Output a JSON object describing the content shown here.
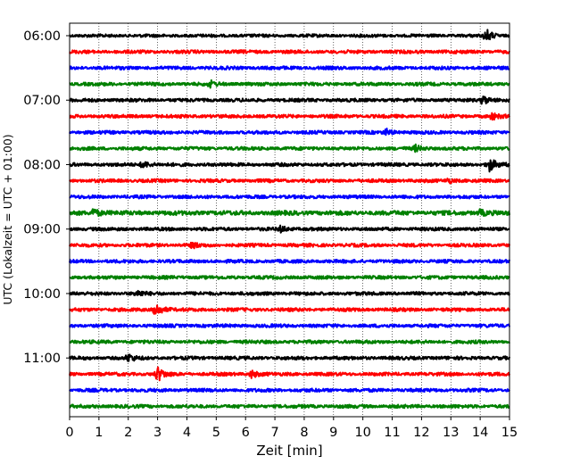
{
  "chart_data": {
    "type": "line",
    "subtype": "helicorder",
    "title": "",
    "xlabel": "Zeit  [min]",
    "ylabel": "UTC (Lokalzeit = UTC + 01:00)",
    "xlim": [
      0,
      15
    ],
    "x_ticks": [
      0,
      1,
      2,
      3,
      4,
      5,
      6,
      7,
      8,
      9,
      10,
      11,
      12,
      13,
      14,
      15
    ],
    "y_tick_labels": [
      "06:00",
      "07:00",
      "08:00",
      "09:00",
      "10:00",
      "11:00"
    ],
    "trace_minutes": 15,
    "grid_x": true,
    "grid_style": "dotted",
    "trace_colors": [
      "#000000",
      "#ff0000",
      "#0000ff",
      "#008000"
    ],
    "traces": [
      {
        "start": "06:00",
        "color": "#000000",
        "noise": 0.9,
        "events": [
          {
            "minute": 14.2,
            "amplitude": 7
          }
        ]
      },
      {
        "start": "06:15",
        "color": "#ff0000",
        "noise": 1.0,
        "events": []
      },
      {
        "start": "06:30",
        "color": "#0000ff",
        "noise": 1.0,
        "events": []
      },
      {
        "start": "06:45",
        "color": "#008000",
        "noise": 1.0,
        "events": [
          {
            "minute": 4.8,
            "amplitude": 3
          }
        ]
      },
      {
        "start": "07:00",
        "color": "#000000",
        "noise": 1.0,
        "events": [
          {
            "minute": 14.1,
            "amplitude": 5
          }
        ]
      },
      {
        "start": "07:15",
        "color": "#ff0000",
        "noise": 1.0,
        "events": [
          {
            "minute": 14.4,
            "amplitude": 3
          }
        ]
      },
      {
        "start": "07:30",
        "color": "#0000ff",
        "noise": 1.0,
        "events": [
          {
            "minute": 10.8,
            "amplitude": 3
          }
        ]
      },
      {
        "start": "07:45",
        "color": "#008000",
        "noise": 1.0,
        "events": [
          {
            "minute": 11.8,
            "amplitude": 3
          }
        ]
      },
      {
        "start": "08:00",
        "color": "#000000",
        "noise": 1.0,
        "events": [
          {
            "minute": 2.5,
            "amplitude": 4
          },
          {
            "minute": 14.3,
            "amplitude": 8
          }
        ]
      },
      {
        "start": "08:15",
        "color": "#ff0000",
        "noise": 1.0,
        "events": [
          {
            "minute": 12.9,
            "amplitude": 2.5
          }
        ]
      },
      {
        "start": "08:30",
        "color": "#0000ff",
        "noise": 1.0,
        "events": []
      },
      {
        "start": "08:45",
        "color": "#008000",
        "noise": 1.3,
        "events": [
          {
            "minute": 0.8,
            "amplitude": 5
          },
          {
            "minute": 14.0,
            "amplitude": 3
          }
        ]
      },
      {
        "start": "09:00",
        "color": "#000000",
        "noise": 1.0,
        "events": [
          {
            "minute": 7.2,
            "amplitude": 3
          }
        ]
      },
      {
        "start": "09:15",
        "color": "#ff0000",
        "noise": 1.0,
        "events": [
          {
            "minute": 4.2,
            "amplitude": 2.5
          }
        ]
      },
      {
        "start": "09:30",
        "color": "#0000ff",
        "noise": 1.0,
        "events": []
      },
      {
        "start": "09:45",
        "color": "#008000",
        "noise": 1.0,
        "events": []
      },
      {
        "start": "10:00",
        "color": "#000000",
        "noise": 1.0,
        "events": [
          {
            "minute": 2.3,
            "amplitude": 3
          }
        ]
      },
      {
        "start": "10:15",
        "color": "#ff0000",
        "noise": 1.0,
        "events": [
          {
            "minute": 2.9,
            "amplitude": 9
          }
        ]
      },
      {
        "start": "10:30",
        "color": "#0000ff",
        "noise": 1.0,
        "events": []
      },
      {
        "start": "10:45",
        "color": "#008000",
        "noise": 1.0,
        "events": []
      },
      {
        "start": "11:00",
        "color": "#000000",
        "noise": 1.0,
        "events": [
          {
            "minute": 2.0,
            "amplitude": 4
          }
        ]
      },
      {
        "start": "11:15",
        "color": "#ff0000",
        "noise": 1.0,
        "events": [
          {
            "minute": 3.0,
            "amplitude": 8
          },
          {
            "minute": 6.2,
            "amplitude": 4
          }
        ]
      },
      {
        "start": "11:30",
        "color": "#0000ff",
        "noise": 1.0,
        "events": []
      },
      {
        "start": "11:45",
        "color": "#008000",
        "noise": 1.0,
        "events": []
      }
    ]
  }
}
